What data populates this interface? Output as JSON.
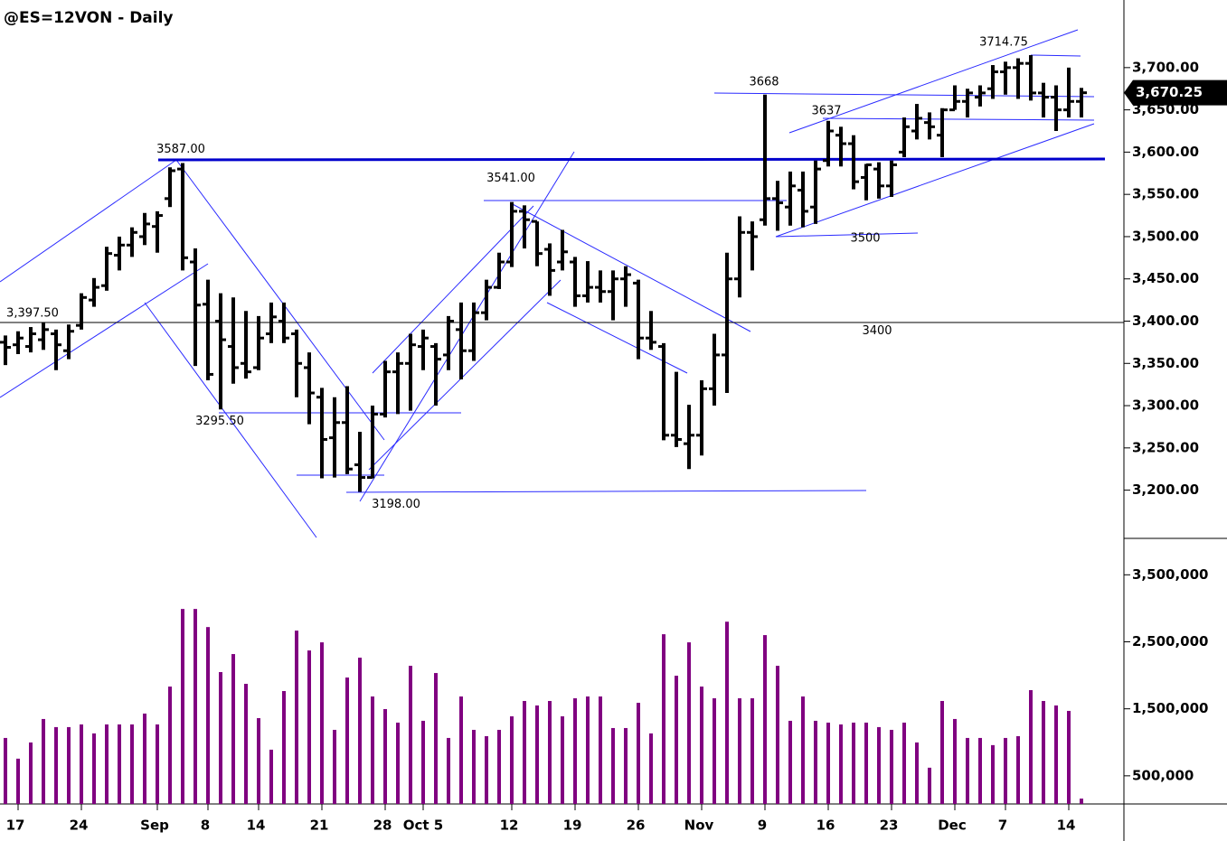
{
  "chart_data": [
    {
      "type": "ohlc",
      "title": "@ES=12VON - Daily",
      "color": "#000000",
      "categories": [
        null,
        "17",
        null,
        null,
        null,
        null,
        "24",
        null,
        null,
        null,
        null,
        null,
        "Sep",
        null,
        null,
        null,
        "8",
        null,
        null,
        null,
        "14",
        null,
        null,
        null,
        null,
        "21",
        null,
        null,
        null,
        null,
        "28",
        null,
        null,
        "Oct 5",
        null,
        null,
        null,
        null,
        null,
        null,
        "12",
        null,
        null,
        null,
        null,
        "19",
        null,
        null,
        null,
        null,
        "26",
        null,
        null,
        null,
        null,
        "Nov",
        null,
        null,
        null,
        null,
        "9",
        null,
        null,
        null,
        null,
        "16",
        null,
        null,
        null,
        null,
        "23",
        null,
        null,
        null,
        null,
        "Dec",
        null,
        null,
        null,
        "7",
        null,
        null,
        null,
        null,
        "14",
        null
      ],
      "open": [
        3375,
        3372,
        3370,
        3378,
        3385,
        3365,
        3395,
        3425,
        3442,
        3478,
        3490,
        3500,
        3512,
        3545,
        3580,
        3470,
        3420,
        3400,
        3370,
        3350,
        3345,
        3385,
        3400,
        3385,
        3345,
        3310,
        3262,
        3280,
        3230,
        3215,
        3290,
        3340,
        3350,
        3370,
        3370,
        3360,
        3390,
        3365,
        3410,
        3440,
        3470,
        3530,
        3518,
        3485,
        3470,
        3470,
        3430,
        3440,
        3435,
        3450,
        3445,
        3380,
        3370,
        3265,
        3255,
        3265,
        3320,
        3360,
        3450,
        3505,
        3520,
        3545,
        3535,
        3555,
        3535,
        3590,
        3620,
        3610,
        3570,
        3580,
        3560,
        3600,
        3625,
        3635,
        3620,
        3650,
        3660,
        3665,
        3675,
        3695,
        3700,
        3705,
        3670,
        3665,
        3650,
        3660
      ],
      "high": [
        3383,
        3388,
        3393,
        3398,
        3390,
        3396,
        3433,
        3451,
        3488,
        3500,
        3511,
        3528,
        3530,
        3582,
        3587,
        3486,
        3449,
        3433,
        3428,
        3412,
        3406,
        3422,
        3422,
        3390,
        3363,
        3321,
        3310,
        3323,
        3269,
        3300,
        3353,
        3363,
        3385,
        3390,
        3374,
        3406,
        3422,
        3422,
        3449,
        3481,
        3541,
        3537,
        3518,
        3492,
        3508,
        3476,
        3471,
        3460,
        3460,
        3465,
        3449,
        3412,
        3374,
        3340,
        3301,
        3330,
        3385,
        3481,
        3524,
        3518,
        3668,
        3566,
        3577,
        3577,
        3590,
        3637,
        3630,
        3620,
        3586,
        3588,
        3590,
        3641,
        3657,
        3647,
        3652,
        3679,
        3675,
        3679,
        3703,
        3707,
        3711,
        3714.75,
        3682,
        3679,
        3700,
        3676
      ],
      "low": [
        3348,
        3361,
        3363,
        3366,
        3342,
        3355,
        3390,
        3417,
        3436,
        3460,
        3476,
        3490,
        3481,
        3535,
        3460,
        3347,
        3330,
        3295.5,
        3326,
        3332,
        3342,
        3374,
        3374,
        3310,
        3278,
        3214,
        3215,
        3219,
        3198,
        3214,
        3286,
        3290,
        3294,
        3342,
        3300,
        3342,
        3331,
        3353,
        3401,
        3438,
        3464,
        3486,
        3465,
        3430,
        3460,
        3417,
        3422,
        3422,
        3401,
        3417,
        3355,
        3366,
        3259,
        3251,
        3225,
        3241,
        3300,
        3315,
        3428,
        3460,
        3513,
        3507,
        3513,
        3511,
        3515,
        3583,
        3583,
        3556,
        3543,
        3545,
        3547,
        3594,
        3615,
        3615,
        3594,
        3650,
        3641,
        3654,
        3663,
        3668,
        3663,
        3661,
        3641,
        3625,
        3641,
        3641
      ],
      "close": [
        3369,
        3380,
        3385,
        3390,
        3372,
        3388,
        3428,
        3440,
        3480,
        3490,
        3505,
        3515,
        3525,
        3578,
        3475,
        3419,
        3337,
        3378,
        3345,
        3340,
        3380,
        3405,
        3380,
        3350,
        3315,
        3260,
        3280,
        3225,
        3215,
        3290,
        3340,
        3350,
        3372,
        3380,
        3355,
        3400,
        3365,
        3410,
        3440,
        3470,
        3530,
        3520,
        3480,
        3460,
        3482,
        3430,
        3440,
        3435,
        3450,
        3455,
        3380,
        3375,
        3265,
        3260,
        3265,
        3320,
        3360,
        3450,
        3505,
        3500,
        3545,
        3540,
        3560,
        3530,
        3580,
        3625,
        3610,
        3565,
        3585,
        3560,
        3585,
        3630,
        3640,
        3630,
        3650,
        3660,
        3670,
        3670,
        3695,
        3700,
        3705,
        3670,
        3665,
        3650,
        3660,
        3670.25
      ],
      "ylim": [
        3144,
        3780
      ],
      "yticks": [
        {
          "value": 3200,
          "label": "3,200.00"
        },
        {
          "value": 3250,
          "label": "3,250.00"
        },
        {
          "value": 3300,
          "label": "3,300.00"
        },
        {
          "value": 3350,
          "label": "3,350.00"
        },
        {
          "value": 3400,
          "label": "3,400.00"
        },
        {
          "value": 3450,
          "label": "3,450.00"
        },
        {
          "value": 3500,
          "label": "3,500.00"
        },
        {
          "value": 3550,
          "label": "3,550.00"
        },
        {
          "value": 3600,
          "label": "3,600.00"
        },
        {
          "value": 3650,
          "label": "3,650.00"
        },
        {
          "value": 3700,
          "label": "3,700.00"
        }
      ],
      "last_price": {
        "value": 3670.25,
        "label": "3,670.25"
      },
      "annotations": [
        {
          "index": 0,
          "value": 3397.5,
          "label": "3,397.50"
        },
        {
          "index": 14,
          "value": 3587,
          "label": "3587.00"
        },
        {
          "index": 17,
          "value": 3295.5,
          "label": "3295.50"
        },
        {
          "index": 28,
          "value": 3198,
          "label": "3198.00"
        },
        {
          "index": 40,
          "value": 3541,
          "label": "3541.00"
        },
        {
          "index": 60,
          "value": 3668
        },
        {
          "index": 65,
          "value": 3637
        },
        {
          "index": 67,
          "value": 3500
        },
        {
          "index": 68,
          "value": 3400
        },
        {
          "index": 81,
          "value": 3714.75
        }
      ]
    },
    {
      "type": "bar",
      "color": "#800080",
      "values": [
        1065000,
        756000,
        998000,
        1348000,
        1227000,
        1227000,
        1267000,
        1133000,
        1267000,
        1267000,
        1267000,
        1429000,
        1267000,
        1832000,
        2990000,
        2990000,
        2720000,
        2048000,
        2317000,
        1873000,
        1361000,
        890000,
        1765000,
        2667000,
        2371000,
        2492000,
        1186000,
        1967000,
        2263000,
        1684000,
        1496000,
        1294000,
        2142000,
        1321000,
        2034000,
        1065000,
        1684000,
        1186000,
        1092000,
        1186000,
        1388000,
        1617000,
        1550000,
        1617000,
        1388000,
        1657000,
        1684000,
        1684000,
        1213000,
        1213000,
        1590000,
        1133000,
        2613000,
        1994000,
        2492000,
        1832000,
        1657000,
        2800000,
        1657000,
        1657000,
        2600000,
        2142000,
        1321000,
        1684000,
        1321000,
        1294000,
        1267000,
        1294000,
        1294000,
        1227000,
        1186000,
        1294000,
        998000,
        621000,
        1617000,
        1348000,
        1065000,
        1065000,
        958000,
        1065000,
        1092000,
        1779000,
        1617000,
        1550000,
        1469000,
        160000
      ],
      "ylim": [
        80000,
        4030000
      ],
      "yticks": [
        {
          "value": 500000,
          "label": "500,000"
        },
        {
          "value": 1500000,
          "label": "1,500,000"
        },
        {
          "value": 2500000,
          "label": "2,500,000"
        },
        {
          "value": 3500000,
          "label": "3,500,000"
        }
      ]
    }
  ]
}
